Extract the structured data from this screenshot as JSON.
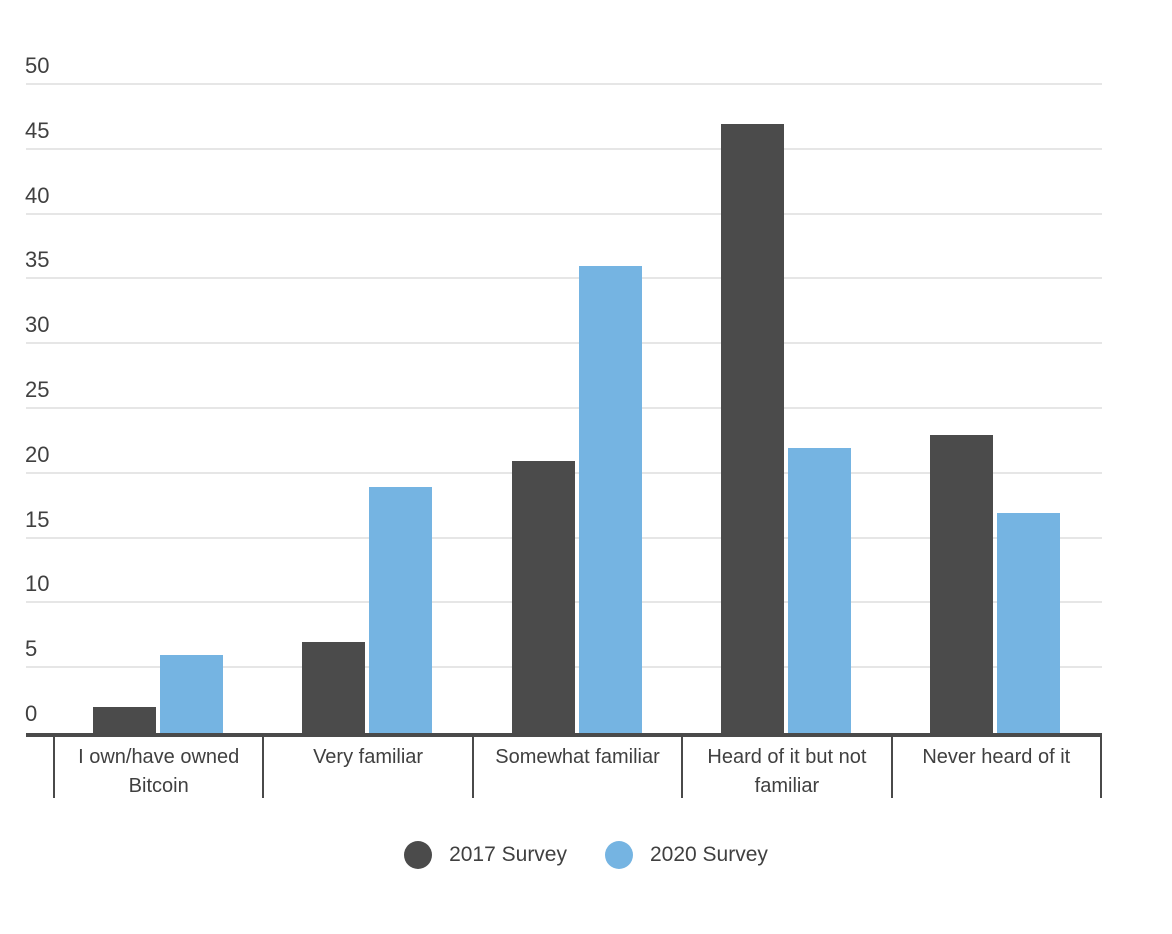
{
  "chart_data": {
    "type": "bar",
    "title": "",
    "categories": [
      "I own/have owned Bitcoin",
      "Very familiar",
      "Somewhat familiar",
      "Heard of it but not familiar",
      "Never heard of it"
    ],
    "series": [
      {
        "name": "2017 Survey",
        "color": "#4b4b4b",
        "values": [
          2,
          7,
          21,
          47,
          23
        ]
      },
      {
        "name": "2020 Survey",
        "color": "#75b4e2",
        "values": [
          6,
          19,
          36,
          22,
          17
        ]
      }
    ],
    "ylim": [
      0,
      50
    ],
    "yticks": [
      0,
      5,
      10,
      15,
      20,
      25,
      30,
      35,
      40,
      45,
      50
    ],
    "grid": true,
    "legend_position": "bottom",
    "colors": {
      "grid": "#e6e6e6",
      "axis": "#4a4a4a",
      "text": "#404040",
      "background": "#ffffff"
    }
  }
}
